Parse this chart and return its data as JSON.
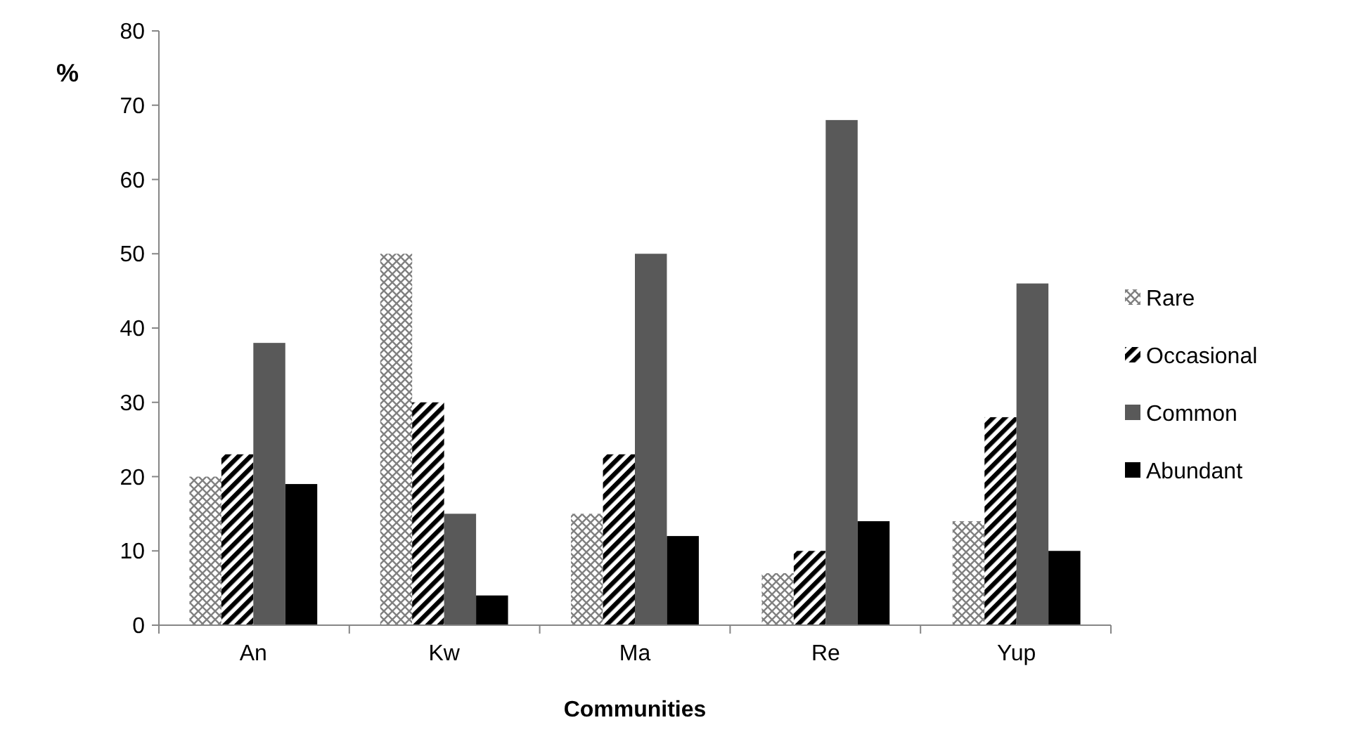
{
  "chart_data": {
    "type": "bar",
    "xlabel": "Communities",
    "ylabel": "%",
    "categories": [
      "An",
      "Kw",
      "Ma",
      "Re",
      "Yup"
    ],
    "series": [
      {
        "name": "Rare",
        "color": "#808080",
        "values": [
          20,
          50,
          15,
          7,
          14
        ]
      },
      {
        "name": "Occasional",
        "color": "#000000",
        "values": [
          23,
          30,
          23,
          10,
          28
        ]
      },
      {
        "name": "Common",
        "color": "#595959",
        "values": [
          38,
          15,
          50,
          68,
          46
        ]
      },
      {
        "name": "Abundant",
        "color": "#000000",
        "values": [
          19,
          4,
          12,
          14,
          10
        ]
      }
    ],
    "ylim": [
      0,
      80
    ],
    "yticks": [
      0,
      10,
      20,
      30,
      40,
      50,
      60,
      70,
      80
    ],
    "grid": false,
    "legend": "right"
  }
}
